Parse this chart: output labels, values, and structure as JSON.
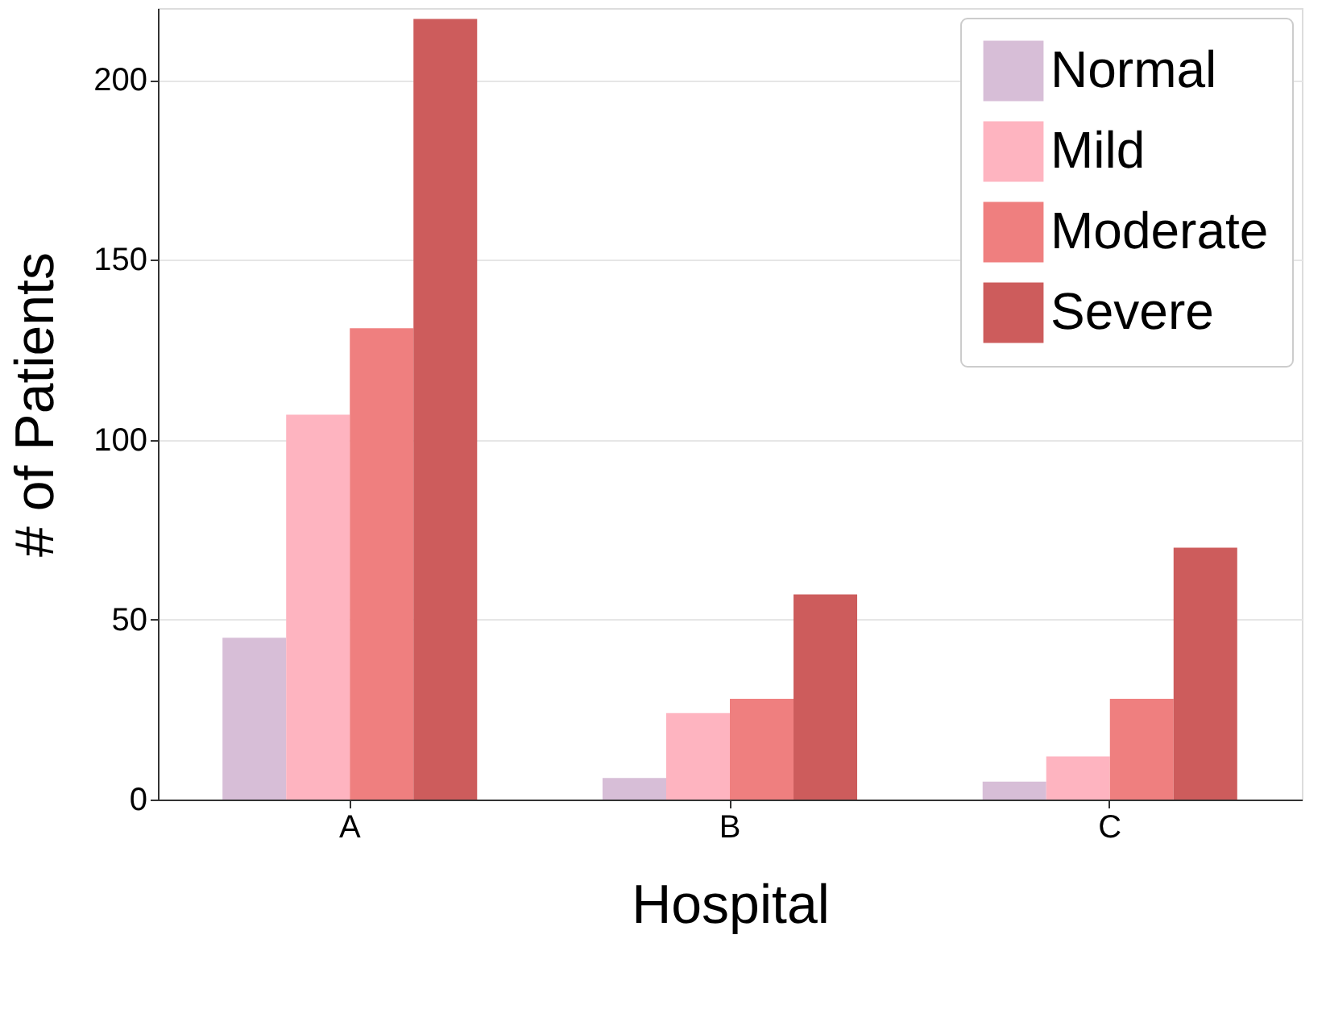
{
  "chart_data": {
    "type": "bar",
    "xlabel": "Hospital",
    "ylabel": "# of Patients",
    "categories": [
      "A",
      "B",
      "C"
    ],
    "series": [
      {
        "name": "Normal",
        "color": "#d7bed7",
        "values": [
          45,
          6,
          5
        ]
      },
      {
        "name": "Mild",
        "color": "#feb4c0",
        "values": [
          107,
          24,
          12
        ]
      },
      {
        "name": "Moderate",
        "color": "#ef7f7f",
        "values": [
          131,
          28,
          28
        ]
      },
      {
        "name": "Severe",
        "color": "#cd5c5c",
        "values": [
          217,
          57,
          70
        ]
      }
    ],
    "ylim": [
      0,
      220
    ],
    "yticks": [
      0,
      50,
      100,
      150,
      200
    ],
    "grid": "y",
    "legend": "top right"
  }
}
